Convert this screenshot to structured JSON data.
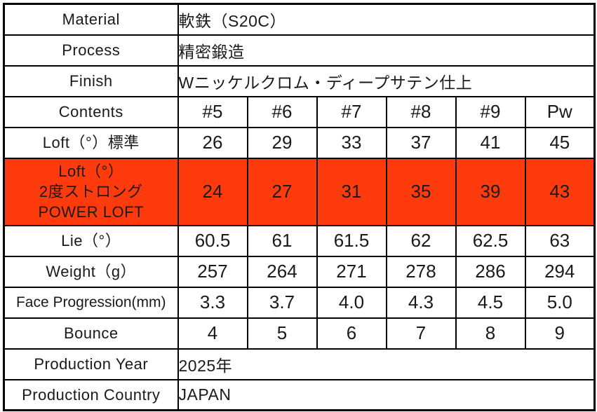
{
  "colors": {
    "highlight": "#ff3b0d",
    "border": "#000000",
    "text": "#1a1a1a",
    "background": "#ffffff"
  },
  "table": {
    "info_top": [
      {
        "label": "Material",
        "value": "軟鉄（S20C）"
      },
      {
        "label": "Process",
        "value": "精密鍛造"
      },
      {
        "label": "Finish",
        "value": "Wニッケルクロム・ディープサテン仕上"
      }
    ],
    "header": {
      "label": "Contents",
      "columns": [
        "#5",
        "#6",
        "#7",
        "#8",
        "#9",
        "Pw"
      ]
    },
    "spec_rows": [
      {
        "label": "Loft（°）標準",
        "values": [
          "26",
          "29",
          "33",
          "37",
          "41",
          "45"
        ]
      },
      {
        "label": "Loft（°）\n2度ストロング\nPOWER LOFT",
        "values": [
          "24",
          "27",
          "31",
          "35",
          "39",
          "43"
        ]
      },
      {
        "label": "Lie（°）",
        "values": [
          "60.5",
          "61",
          "61.5",
          "62",
          "62.5",
          "63"
        ]
      },
      {
        "label": "Weight（g）",
        "values": [
          "257",
          "264",
          "271",
          "278",
          "286",
          "294"
        ]
      },
      {
        "label": "Face Progression(mm)",
        "values": [
          "3.3",
          "3.7",
          "4.0",
          "4.3",
          "4.5",
          "5.0"
        ]
      },
      {
        "label": "Bounce",
        "values": [
          "4",
          "5",
          "6",
          "7",
          "8",
          "9"
        ]
      }
    ],
    "info_bottom": [
      {
        "label": "Production Year",
        "value": "2025年"
      },
      {
        "label": "Production Country",
        "value": "JAPAN"
      }
    ]
  }
}
